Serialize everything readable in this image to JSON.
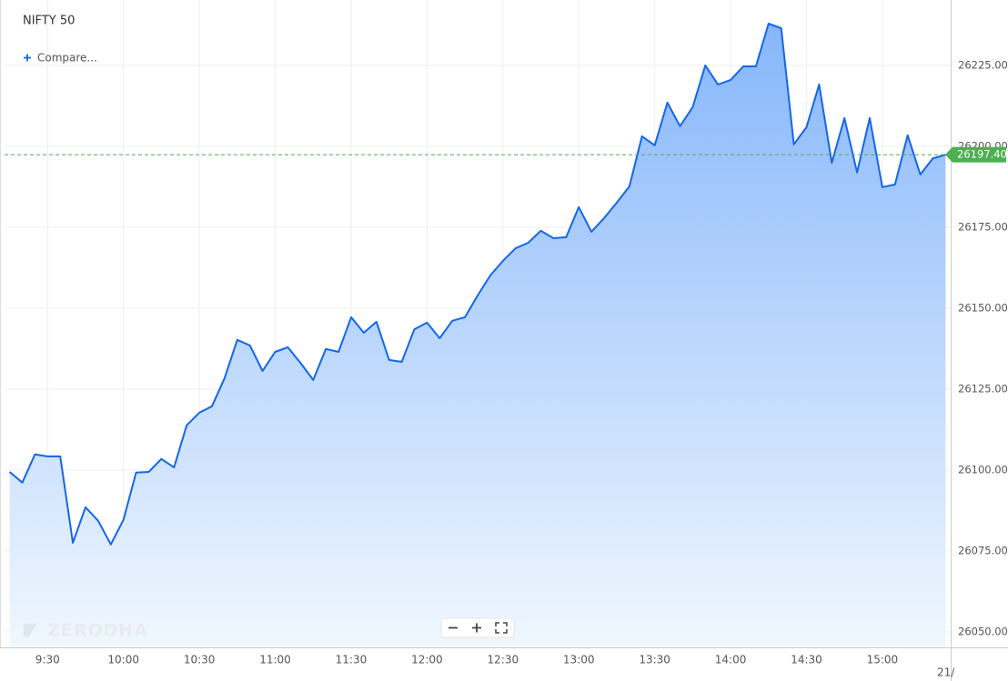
{
  "chart_data": {
    "type": "line",
    "title": "NIFTY 50",
    "compare_label": "Compare...",
    "watermark": "ZERODHA",
    "date_label": "21/",
    "color": "#1466ea",
    "grid": true,
    "x": [
      "9:15",
      "9:20",
      "9:25",
      "9:30",
      "9:35",
      "9:40",
      "9:45",
      "9:50",
      "9:55",
      "10:00",
      "10:05",
      "10:10",
      "10:15",
      "10:20",
      "10:25",
      "10:30",
      "10:35",
      "10:40",
      "10:45",
      "10:50",
      "10:55",
      "11:00",
      "11:05",
      "11:10",
      "11:15",
      "11:20",
      "11:25",
      "11:30",
      "11:35",
      "11:40",
      "11:45",
      "11:50",
      "11:55",
      "12:00",
      "12:05",
      "12:10",
      "12:15",
      "12:20",
      "12:25",
      "12:30",
      "12:35",
      "12:40",
      "12:45",
      "12:50",
      "12:55",
      "13:00",
      "13:05",
      "13:10",
      "13:15",
      "13:20",
      "13:25",
      "13:30",
      "13:35",
      "13:40",
      "13:45",
      "13:50",
      "13:55",
      "14:00",
      "14:05",
      "14:10",
      "14:15",
      "14:20",
      "14:25",
      "14:30",
      "14:35",
      "14:40",
      "14:45",
      "14:50",
      "14:55",
      "15:00",
      "15:05",
      "15:10",
      "15:15",
      "15:20",
      "15:25"
    ],
    "values": [
      26099.4,
      26096.1,
      26104.8,
      26104.2,
      26104.2,
      26077.5,
      26088.5,
      26084.3,
      26077.0,
      26084.6,
      26099.2,
      26099.4,
      26103.4,
      26100.8,
      26113.8,
      26117.7,
      26119.7,
      26128.4,
      26140.2,
      26138.5,
      26130.6,
      26136.5,
      26137.9,
      26133.1,
      26127.8,
      26137.4,
      26136.5,
      26147.2,
      26142.4,
      26145.8,
      26134.0,
      26133.4,
      26143.5,
      26145.5,
      26140.7,
      26146.1,
      26147.2,
      26153.9,
      26160.1,
      26164.6,
      26168.5,
      26170.2,
      26173.9,
      26171.6,
      26171.9,
      26181.2,
      26173.6,
      26177.8,
      26182.6,
      26187.6,
      26203.1,
      26200.3,
      26213.5,
      26206.2,
      26212.1,
      26225.0,
      26219.1,
      26220.5,
      26224.7,
      26224.7,
      26237.9,
      26236.5,
      26200.6,
      26205.9,
      26219.1,
      26194.9,
      26208.7,
      26191.9,
      26208.7,
      26187.4,
      26188.2,
      26203.4,
      26191.3,
      26196.3,
      26197.4
    ],
    "last_value_label": "26197.40",
    "xlim": [
      "9:13",
      "15:27"
    ],
    "xticks": [
      "9:30",
      "10:00",
      "10:30",
      "11:00",
      "11:30",
      "12:00",
      "12:30",
      "13:00",
      "13:30",
      "14:00",
      "14:30",
      "15:00"
    ],
    "ylim": [
      26045.2,
      26245.2
    ],
    "yticks": [
      {
        "value": 26050,
        "label": "26050.00"
      },
      {
        "value": 26075,
        "label": "26075.00"
      },
      {
        "value": 26100,
        "label": "26100.00"
      },
      {
        "value": 26125,
        "label": "26125.00"
      },
      {
        "value": 26150,
        "label": "26150.00"
      },
      {
        "value": 26175,
        "label": "26175.00"
      },
      {
        "value": 26200,
        "label": "26200.00"
      },
      {
        "value": 26225,
        "label": "26225.00"
      }
    ]
  }
}
